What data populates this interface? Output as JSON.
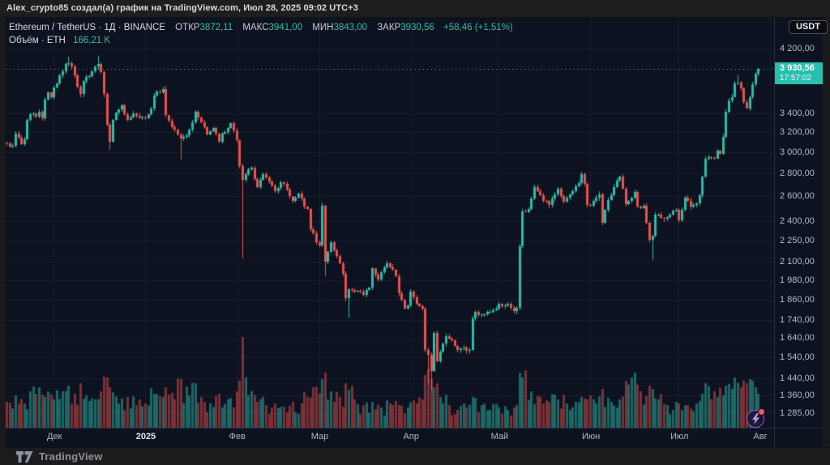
{
  "header": {
    "title": "Alex_crypto85 создал(а) график на TradingView.com, Июл 28, 2025 09:02 UTC+3"
  },
  "legend": {
    "symbol_line": "Ethereum / TetherUS · 1Д · BINANCE",
    "ohlc": [
      {
        "k": "ОТКР",
        "v": "3872,11"
      },
      {
        "k": "МАКС",
        "v": "3941,00"
      },
      {
        "k": "МИН",
        "v": "3843,00"
      },
      {
        "k": "ЗАКР",
        "v": "3930,56"
      }
    ],
    "change": "+58,46 (+1,51%)",
    "volume_label": "Объём · ETH",
    "volume_value": "166,21 K"
  },
  "price_scale": {
    "currency_badge": "USDT",
    "last_price_label": "3 930,56",
    "countdown": "17:57:02",
    "last_price_value": 3930.56,
    "ticks": [
      {
        "label": "4 200,00",
        "value": 4200
      },
      {
        "label": "3 400,00",
        "value": 3400
      },
      {
        "label": "3 200,00",
        "value": 3200
      },
      {
        "label": "3 000,00",
        "value": 3000
      },
      {
        "label": "2 800,00",
        "value": 2800
      },
      {
        "label": "2 600,00",
        "value": 2600
      },
      {
        "label": "2 400,00",
        "value": 2400
      },
      {
        "label": "2 250,00",
        "value": 2250
      },
      {
        "label": "2 100,00",
        "value": 2100
      },
      {
        "label": "1 980,00",
        "value": 1980
      },
      {
        "label": "1 860,00",
        "value": 1860
      },
      {
        "label": "1 740,00",
        "value": 1740
      },
      {
        "label": "1 640,00",
        "value": 1640
      },
      {
        "label": "1 540,00",
        "value": 1540
      },
      {
        "label": "1 440,00",
        "value": 1440
      },
      {
        "label": "1 360,00",
        "value": 1360
      },
      {
        "label": "1 285,00",
        "value": 1285
      }
    ]
  },
  "time_scale": {
    "labels": [
      {
        "text": "Дек",
        "t": 16,
        "bright": false
      },
      {
        "text": "2025",
        "t": 47,
        "bright": true
      },
      {
        "text": "Фев",
        "t": 78,
        "bright": false
      },
      {
        "text": "Мар",
        "t": 106,
        "bright": false
      },
      {
        "text": "Апр",
        "t": 137,
        "bright": false
      },
      {
        "text": "Май",
        "t": 167,
        "bright": false
      },
      {
        "text": "Июн",
        "t": 198,
        "bright": false
      },
      {
        "text": "Июл",
        "t": 228,
        "bright": false
      },
      {
        "text": "Авг",
        "t": 259,
        "bright": false
      }
    ]
  },
  "footer": {
    "brand": "TradingView"
  },
  "colors": {
    "up": "#2cbca7",
    "down": "#e8524e",
    "up_volume": "rgba(44,188,167,0.5)",
    "down_volume": "rgba(232,82,78,0.5)",
    "pane_bg": "#0d1220",
    "grid": "rgba(170,180,210,0.07)",
    "axis_text": "#b4b9c5",
    "price_line": "#2ebda8",
    "badge_bg": "#28bfae",
    "accent_purple": "#8b5cf6"
  },
  "chart_data": {
    "type": "candlestick",
    "symbol": "Ethereum / TetherUS",
    "exchange": "BINANCE",
    "interval": "1Д",
    "log_scale": true,
    "day0": "2024-11-15",
    "days": 256,
    "ylim": [
      1240,
      4350
    ],
    "last_candle": {
      "o": 3872.11,
      "h": 3941.0,
      "l": 3843.0,
      "c": 3930.56
    },
    "price_anchors": [
      [
        0,
        3085
      ],
      [
        2,
        3065
      ],
      [
        3,
        3190
      ],
      [
        5,
        3080
      ],
      [
        6,
        3130
      ],
      [
        7,
        3330
      ],
      [
        8,
        3390
      ],
      [
        10,
        3365
      ],
      [
        11,
        3420
      ],
      [
        12,
        3350
      ],
      [
        13,
        3560
      ],
      [
        14,
        3640
      ],
      [
        15,
        3585
      ],
      [
        16,
        3700
      ],
      [
        18,
        3850
      ],
      [
        20,
        3990
      ],
      [
        21,
        4005
      ],
      [
        22,
        3960
      ],
      [
        24,
        3710
      ],
      [
        25,
        3620
      ],
      [
        26,
        3780
      ],
      [
        27,
        3830
      ],
      [
        29,
        3900
      ],
      [
        30,
        3960
      ],
      [
        31,
        3990
      ],
      [
        32,
        3890
      ],
      [
        33,
        3620
      ],
      [
        34,
        3280
      ],
      [
        35,
        3105
      ],
      [
        36,
        3330
      ],
      [
        37,
        3415
      ],
      [
        39,
        3492
      ],
      [
        41,
        3332
      ],
      [
        43,
        3404
      ],
      [
        45,
        3358
      ],
      [
        47,
        3353
      ],
      [
        49,
        3455
      ],
      [
        50,
        3609
      ],
      [
        51,
        3657
      ],
      [
        53,
        3687
      ],
      [
        54,
        3381
      ],
      [
        55,
        3327
      ],
      [
        57,
        3226
      ],
      [
        59,
        3137
      ],
      [
        61,
        3170
      ],
      [
        62,
        3230
      ],
      [
        63,
        3308
      ],
      [
        64,
        3420
      ],
      [
        65,
        3358
      ],
      [
        66,
        3308
      ],
      [
        68,
        3180
      ],
      [
        70,
        3242
      ],
      [
        72,
        3105
      ],
      [
        73,
        3183
      ],
      [
        75,
        3247
      ],
      [
        76,
        3300
      ],
      [
        78,
        3117
      ],
      [
        79,
        2869
      ],
      [
        80,
        2740
      ],
      [
        81,
        2790
      ],
      [
        83,
        2856
      ],
      [
        85,
        2680
      ],
      [
        87,
        2790
      ],
      [
        89,
        2725
      ],
      [
        91,
        2640
      ],
      [
        93,
        2720
      ],
      [
        95,
        2660
      ],
      [
        97,
        2560
      ],
      [
        99,
        2620
      ],
      [
        101,
        2513
      ],
      [
        102,
        2495
      ],
      [
        103,
        2336
      ],
      [
        104,
        2308
      ],
      [
        105,
        2237
      ],
      [
        106,
        2218
      ],
      [
        107,
        2518
      ],
      [
        108,
        2100
      ],
      [
        109,
        2171
      ],
      [
        110,
        2241
      ],
      [
        112,
        2141
      ],
      [
        114,
        2020
      ],
      [
        115,
        1865
      ],
      [
        116,
        1924
      ],
      [
        118,
        1908
      ],
      [
        119,
        1911
      ],
      [
        121,
        1887
      ],
      [
        123,
        1930
      ],
      [
        124,
        2056
      ],
      [
        126,
        1983
      ],
      [
        129,
        2090
      ],
      [
        130,
        2066
      ],
      [
        132,
        2003
      ],
      [
        133,
        1896
      ],
      [
        135,
        1806
      ],
      [
        136,
        1822
      ],
      [
        137,
        1905
      ],
      [
        138,
        1871
      ],
      [
        140,
        1817
      ],
      [
        141,
        1806
      ],
      [
        142,
        1580
      ],
      [
        143,
        1552
      ],
      [
        144,
        1472
      ],
      [
        145,
        1669
      ],
      [
        146,
        1520
      ],
      [
        147,
        1571
      ],
      [
        149,
        1650
      ],
      [
        151,
        1630
      ],
      [
        153,
        1577
      ],
      [
        155,
        1590
      ],
      [
        156,
        1572
      ],
      [
        157,
        1579
      ],
      [
        158,
        1747
      ],
      [
        159,
        1786
      ],
      [
        161,
        1770
      ],
      [
        163,
        1786
      ],
      [
        165,
        1795
      ],
      [
        167,
        1832
      ],
      [
        168,
        1818
      ],
      [
        170,
        1832
      ],
      [
        172,
        1790
      ],
      [
        173,
        1811
      ],
      [
        174,
        2211
      ],
      [
        175,
        2473
      ],
      [
        177,
        2497
      ],
      [
        179,
        2680
      ],
      [
        181,
        2610
      ],
      [
        184,
        2525
      ],
      [
        187,
        2661
      ],
      [
        189,
        2556
      ],
      [
        192,
        2640
      ],
      [
        194,
        2715
      ],
      [
        195,
        2790
      ],
      [
        196,
        2705
      ],
      [
        197,
        2530
      ],
      [
        198,
        2519
      ],
      [
        201,
        2617
      ],
      [
        202,
        2387
      ],
      [
        203,
        2488
      ],
      [
        206,
        2681
      ],
      [
        208,
        2772
      ],
      [
        210,
        2534
      ],
      [
        213,
        2639
      ],
      [
        214,
        2512
      ],
      [
        216,
        2520
      ],
      [
        218,
        2257
      ],
      [
        219,
        2286
      ],
      [
        220,
        2450
      ],
      [
        222,
        2425
      ],
      [
        224,
        2430
      ],
      [
        227,
        2487
      ],
      [
        228,
        2405
      ],
      [
        230,
        2591
      ],
      [
        232,
        2512
      ],
      [
        234,
        2540
      ],
      [
        235,
        2610
      ],
      [
        236,
        2772
      ],
      [
        237,
        2940
      ],
      [
        238,
        2951
      ],
      [
        240,
        2940
      ],
      [
        241,
        3015
      ],
      [
        242,
        2984
      ],
      [
        243,
        3156
      ],
      [
        244,
        3424
      ],
      [
        245,
        3545
      ],
      [
        246,
        3590
      ],
      [
        247,
        3748
      ],
      [
        248,
        3762
      ],
      [
        249,
        3693
      ],
      [
        250,
        3530
      ],
      [
        251,
        3460
      ],
      [
        252,
        3590
      ],
      [
        253,
        3745
      ],
      [
        254,
        3872.11
      ],
      [
        255,
        3930.56
      ]
    ],
    "wick_overrides": [
      [
        21,
        "h",
        4088
      ],
      [
        31,
        "h",
        4107
      ],
      [
        35,
        "l",
        3020
      ],
      [
        59,
        "l",
        2926
      ],
      [
        80,
        "l",
        2125
      ],
      [
        107,
        "h",
        2550
      ],
      [
        108,
        "l",
        2004
      ],
      [
        116,
        "l",
        1754
      ],
      [
        143,
        "l",
        1415
      ],
      [
        144,
        "l",
        1385
      ],
      [
        202,
        "l",
        2365
      ],
      [
        219,
        "l",
        2113
      ],
      [
        248,
        "h",
        3848
      ]
    ],
    "volume_anchors": [
      [
        0,
        32
      ],
      [
        3,
        40
      ],
      [
        6,
        30
      ],
      [
        8,
        45
      ],
      [
        10,
        42
      ],
      [
        13,
        38
      ],
      [
        16,
        35
      ],
      [
        19,
        45
      ],
      [
        21,
        52
      ],
      [
        23,
        42
      ],
      [
        25,
        55
      ],
      [
        27,
        40
      ],
      [
        30,
        35
      ],
      [
        32,
        45
      ],
      [
        34,
        62
      ],
      [
        35,
        50
      ],
      [
        38,
        30
      ],
      [
        41,
        38
      ],
      [
        44,
        28
      ],
      [
        47,
        30
      ],
      [
        50,
        42
      ],
      [
        54,
        50
      ],
      [
        57,
        35
      ],
      [
        59,
        60
      ],
      [
        62,
        40
      ],
      [
        64,
        55
      ],
      [
        66,
        38
      ],
      [
        69,
        30
      ],
      [
        72,
        42
      ],
      [
        75,
        35
      ],
      [
        78,
        45
      ],
      [
        79,
        58
      ],
      [
        80,
        112
      ],
      [
        82,
        40
      ],
      [
        85,
        32
      ],
      [
        88,
        28
      ],
      [
        91,
        30
      ],
      [
        94,
        26
      ],
      [
        97,
        32
      ],
      [
        100,
        30
      ],
      [
        102,
        38
      ],
      [
        104,
        50
      ],
      [
        106,
        42
      ],
      [
        107,
        60
      ],
      [
        108,
        68
      ],
      [
        110,
        45
      ],
      [
        113,
        38
      ],
      [
        115,
        55
      ],
      [
        118,
        35
      ],
      [
        121,
        28
      ],
      [
        124,
        32
      ],
      [
        127,
        25
      ],
      [
        130,
        30
      ],
      [
        133,
        28
      ],
      [
        136,
        25
      ],
      [
        139,
        30
      ],
      [
        141,
        35
      ],
      [
        142,
        65
      ],
      [
        143,
        72
      ],
      [
        144,
        60
      ],
      [
        145,
        50
      ],
      [
        147,
        38
      ],
      [
        150,
        28
      ],
      [
        153,
        22
      ],
      [
        156,
        25
      ],
      [
        158,
        38
      ],
      [
        161,
        28
      ],
      [
        164,
        22
      ],
      [
        167,
        25
      ],
      [
        170,
        22
      ],
      [
        173,
        28
      ],
      [
        174,
        68
      ],
      [
        175,
        62
      ],
      [
        178,
        45
      ],
      [
        181,
        38
      ],
      [
        184,
        32
      ],
      [
        187,
        35
      ],
      [
        190,
        30
      ],
      [
        193,
        32
      ],
      [
        195,
        38
      ],
      [
        197,
        35
      ],
      [
        200,
        30
      ],
      [
        202,
        48
      ],
      [
        205,
        32
      ],
      [
        208,
        35
      ],
      [
        210,
        58
      ],
      [
        212,
        62
      ],
      [
        213,
        68
      ],
      [
        215,
        45
      ],
      [
        218,
        52
      ],
      [
        219,
        48
      ],
      [
        221,
        35
      ],
      [
        224,
        28
      ],
      [
        227,
        32
      ],
      [
        228,
        30
      ],
      [
        231,
        28
      ],
      [
        234,
        30
      ],
      [
        236,
        42
      ],
      [
        237,
        55
      ],
      [
        239,
        35
      ],
      [
        241,
        38
      ],
      [
        243,
        40
      ],
      [
        244,
        52
      ],
      [
        246,
        48
      ],
      [
        247,
        62
      ],
      [
        249,
        50
      ],
      [
        251,
        55
      ],
      [
        252,
        60
      ],
      [
        253,
        58
      ],
      [
        254,
        50
      ],
      [
        255,
        42
      ]
    ]
  }
}
